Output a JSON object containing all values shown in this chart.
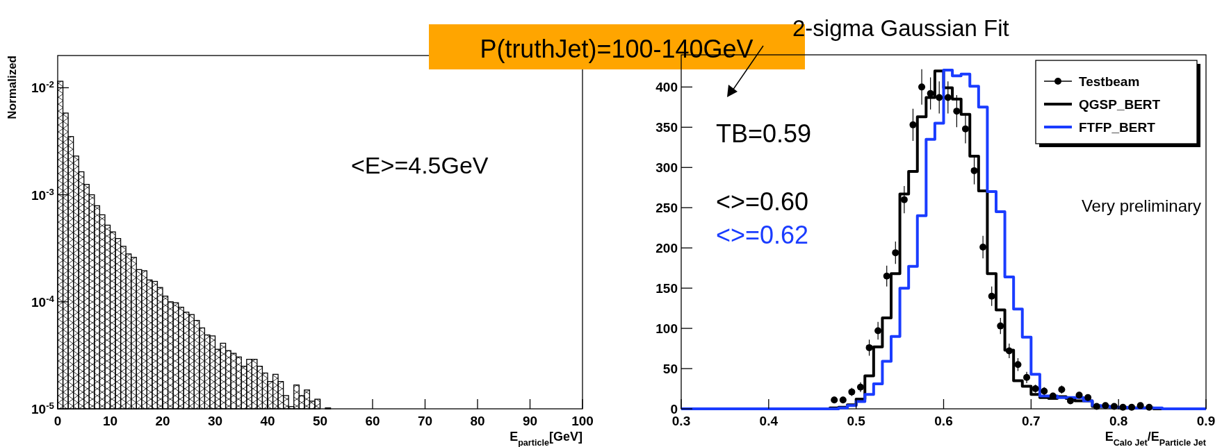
{
  "chart_data": [
    {
      "type": "histogram",
      "log": true,
      "xlabel": "E$_{particle}$[GeV]",
      "ylabel": "Normalized",
      "color": "#000000",
      "bins": [
        0,
        1,
        2,
        3,
        4,
        5,
        6,
        7,
        8,
        9,
        10,
        11,
        12,
        13,
        14,
        15,
        16,
        17,
        18,
        19,
        20,
        21,
        22,
        23,
        24,
        25,
        26,
        27,
        28,
        29,
        30,
        31,
        32,
        33,
        34,
        35,
        36,
        37,
        38,
        39,
        40,
        41,
        42,
        43,
        44,
        45,
        46,
        47,
        48,
        49,
        50,
        51,
        52
      ],
      "values": [
        0.0115,
        0.0058,
        0.0035,
        0.0023,
        0.00164,
        0.00125,
        0.001,
        0.00079,
        0.00065,
        0.00052,
        0.00045,
        0.00039,
        0.00033,
        0.00028,
        0.00026,
        0.0002,
        0.000195,
        0.00016,
        0.000155,
        0.000136,
        0.000113,
        0.0001,
        9.8e-05,
        8.9e-05,
        8e-05,
        7.6e-05,
        6.7e-05,
        5.7e-05,
        4.9e-05,
        4.8e-05,
        3.6e-05,
        4.1e-05,
        3.5e-05,
        3.3e-05,
        3.05e-05,
        2.5e-05,
        2.9e-05,
        2.9e-05,
        2.5e-05,
        2.16e-05,
        1.8e-05,
        2.1e-05,
        1.8e-05,
        1.33e-05,
        1.05e-05,
        1.67e-05,
        1.33e-05,
        1.5e-05,
        1.18e-05,
        1.23e-05,
        null,
        1.02e-05
      ],
      "xlim": [
        0,
        100
      ],
      "xticks": [
        0,
        10,
        20,
        30,
        40,
        50,
        60,
        70,
        80,
        90,
        100
      ],
      "ylim": [
        1e-05,
        0.02
      ],
      "yticks": [
        {
          "value": 1e-05,
          "label": "10$^{-5}$"
        },
        {
          "value": 0.0001,
          "label": "10$^{-4}$"
        },
        {
          "value": 0.001,
          "label": "10$^{-3}$"
        },
        {
          "value": 0.01,
          "label": "10$^{-2}$"
        }
      ],
      "annotations": [
        "<E>=4.5GeV",
        "P(truthJet)=100-140GeV"
      ]
    },
    {
      "type": "histogram",
      "xlabel": "E$_{Calo Jet}$/E$_{Particle Jet}$",
      "legend": "top right",
      "bins": [
        0.3,
        0.31,
        0.32,
        0.33,
        0.34,
        0.35,
        0.36,
        0.37,
        0.38,
        0.39,
        0.4,
        0.41,
        0.42,
        0.43,
        0.44,
        0.45,
        0.46,
        0.47,
        0.48,
        0.49,
        0.5,
        0.51,
        0.52,
        0.53,
        0.54,
        0.55,
        0.56,
        0.57,
        0.58,
        0.59,
        0.6,
        0.61,
        0.62,
        0.63,
        0.64,
        0.65,
        0.66,
        0.67,
        0.68,
        0.69,
        0.7,
        0.71,
        0.72,
        0.73,
        0.74,
        0.75,
        0.76,
        0.77,
        0.78,
        0.79,
        0.8,
        0.81,
        0.82,
        0.83,
        0.84,
        0.85,
        0.86,
        0.87,
        0.88,
        0.89,
        0.9
      ],
      "series": [
        {
          "name": "Testbeam",
          "type": "scatter",
          "marker": "circle",
          "color": "#000000",
          "x": [
            0.475,
            0.485,
            0.495,
            0.505,
            0.515,
            0.525,
            0.535,
            0.545,
            0.555,
            0.565,
            0.575,
            0.585,
            0.595,
            0.605,
            0.615,
            0.625,
            0.635,
            0.645,
            0.655,
            0.665,
            0.675,
            0.685,
            0.695,
            0.705,
            0.715,
            0.725,
            0.735,
            0.745,
            0.755,
            0.765,
            0.775,
            0.785,
            0.795,
            0.805,
            0.815,
            0.825,
            0.835
          ],
          "values": [
            11,
            11,
            21,
            27,
            76,
            97,
            165,
            194,
            260,
            353,
            400,
            392,
            387,
            387,
            370,
            348,
            296,
            201,
            140,
            103,
            72,
            55,
            39,
            25,
            22,
            16,
            24,
            10,
            17,
            14,
            3,
            4,
            3,
            2,
            2,
            4,
            2
          ],
          "errors": [
            4,
            4,
            5,
            6,
            10,
            11,
            13,
            14,
            17,
            20,
            22,
            20,
            20,
            20,
            20,
            18,
            17,
            14,
            12,
            10,
            9,
            8,
            7,
            5,
            5,
            4,
            5,
            3,
            4,
            4,
            2,
            2,
            2,
            2,
            2,
            2,
            2
          ]
        },
        {
          "name": "QGSP_BERT",
          "color": "#000000",
          "values": [
            0,
            0,
            0,
            0,
            0,
            0,
            0,
            0,
            0,
            0,
            0,
            0,
            0,
            0,
            0,
            0,
            0,
            1,
            2,
            5,
            12,
            41,
            77,
            113,
            168,
            267,
            295,
            363,
            387,
            420,
            399,
            385,
            366,
            314,
            271,
            168,
            123,
            73,
            35,
            28,
            18,
            14,
            13,
            15,
            13,
            10,
            10,
            3,
            3,
            2,
            1,
            1,
            1,
            1,
            0,
            0,
            0,
            0,
            0,
            0
          ]
        },
        {
          "name": "FTFP_BERT",
          "color": "#1a3cff",
          "values": [
            0,
            0,
            0,
            0,
            0,
            0,
            0,
            0,
            0,
            0,
            0,
            0,
            0,
            0,
            0,
            0,
            0,
            0,
            1,
            4,
            9,
            18,
            31,
            59,
            90,
            150,
            177,
            240,
            335,
            355,
            421,
            414,
            416,
            401,
            375,
            270,
            245,
            164,
            124,
            89,
            43,
            16,
            16,
            14,
            14,
            14,
            10,
            4,
            3,
            2,
            2,
            1,
            1,
            1,
            1,
            0,
            0,
            0,
            0,
            0
          ]
        }
      ],
      "xlim": [
        0.3,
        0.9
      ],
      "xticks": [
        0.3,
        0.4,
        0.5,
        0.6,
        0.7,
        0.8,
        0.9
      ],
      "ylim": [
        0,
        440
      ],
      "yticks": [
        0,
        50,
        100,
        150,
        200,
        250,
        300,
        350,
        400
      ],
      "annotations": [
        "2-sigma Gaussian Fit",
        "TB=0.59",
        "<>=0.60",
        "<>=0.62",
        "Very preliminary"
      ]
    }
  ]
}
